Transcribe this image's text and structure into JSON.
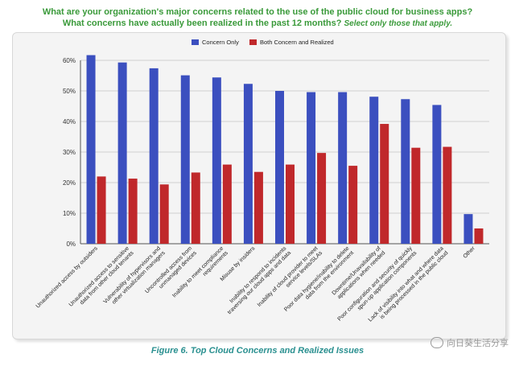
{
  "title": {
    "line1": "What are your organization's major concerns related to the use of the public cloud for business apps?",
    "line2_main": "What concerns have actually been realized in the past 12 months?",
    "line2_italic": "Select only those that apply."
  },
  "caption": "Figure 6. Top Cloud Concerns and Realized Issues",
  "watermark": "向日葵生活分享",
  "colors": {
    "concern": "#3b4fbf",
    "realized": "#c0282b",
    "grid": "#d0d0d0"
  },
  "chart_data": {
    "type": "bar",
    "categories": [
      "Unauthorized access by outsiders",
      "Unauthorized access to sensitive data from other cloud tenants",
      "Vulnerability of hypervisors and other virtualization managers",
      "Uncontrolled access from unmanaged devices",
      "Inability to meet compliance requirements",
      "Misuse by insiders",
      "Inability to respond to incidents traversing our cloud apps and data",
      "Inability of cloud provider to meet service levels/SLAs",
      "Poor data hygiene/inability to delete data from the environment",
      "Downtime/Unavailability of applications when needed",
      "Poor configuration and security of quickly spun-up application components",
      "Lack of visibility into what and where data is being processed in the public cloud",
      "Other"
    ],
    "category_lines": [
      [
        "Unauthorized access by outsiders"
      ],
      [
        "Unauthorized access to sensitive",
        "data from other cloud tenants"
      ],
      [
        "Vulnerability of hypervisors and",
        "other virtualization managers"
      ],
      [
        "Uncontrolled access from",
        "unmanaged devices"
      ],
      [
        "Inability to meet compliance",
        "requirements"
      ],
      [
        "Misuse by insiders"
      ],
      [
        "Inability to respond to incidents",
        "traversing our cloud apps and data"
      ],
      [
        "Inability of cloud provider to meet",
        "service levels/SLAs"
      ],
      [
        "Poor data hygiene/inability to delete",
        "data from the environment"
      ],
      [
        "Downtime/Unavailability of",
        "applications when needed"
      ],
      [
        "Poor configuration and security of quickly",
        "spun-up application components"
      ],
      [
        "Lack of visibility into what and where data",
        "is being processed in the public cloud"
      ],
      [
        "Other"
      ]
    ],
    "series": [
      {
        "name": "Concern Only",
        "values": [
          61.7,
          59.3,
          57.4,
          55.1,
          54.4,
          52.3,
          50.0,
          49.6,
          49.6,
          48.1,
          47.3,
          45.4,
          9.7
        ]
      },
      {
        "name": "Both Concern and Realized",
        "values": [
          22.0,
          21.3,
          19.4,
          23.3,
          25.9,
          23.5,
          25.9,
          29.7,
          25.5,
          39.2,
          31.4,
          31.7,
          5.0
        ]
      }
    ],
    "ylim": [
      0,
      60
    ],
    "yticks": [
      0,
      10,
      20,
      30,
      40,
      50,
      60
    ],
    "ytick_format": "%",
    "legend_position": "top-center",
    "grid": true
  }
}
